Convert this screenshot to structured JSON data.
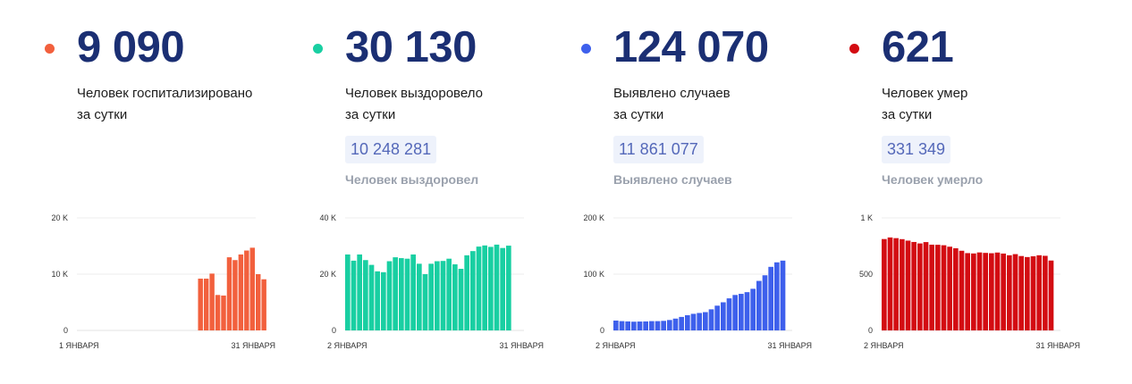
{
  "panels": [
    {
      "id": "hospitalized",
      "color": "#f2603d",
      "number": "9 090",
      "desc_line1": "Человек госпитализировано",
      "desc_line2": "за сутки",
      "total": null,
      "total_label": null
    },
    {
      "id": "recovered",
      "color": "#19cfa2",
      "number": "30 130",
      "desc_line1": "Человек выздоровело",
      "desc_line2": "за сутки",
      "total": "10 248 281",
      "total_label": "Человек выздоровел"
    },
    {
      "id": "cases",
      "color": "#3e60ec",
      "number": "124 070",
      "desc_line1": "Выявлено случаев",
      "desc_line2": "за сутки",
      "total": "11 861 077",
      "total_label": "Выявлено случаев"
    },
    {
      "id": "deaths",
      "color": "#d30c12",
      "number": "621",
      "desc_line1": "Человек умер",
      "desc_line2": "за сутки",
      "total": "331 349",
      "total_label": "Человек умерло"
    }
  ],
  "chart_data": [
    {
      "type": "bar",
      "x_start_label": "1 ЯНВАРЯ",
      "x_end_label": "31 ЯНВАРЯ",
      "y_ticks": [
        "0",
        "10 K",
        "20 K"
      ],
      "ylim": [
        0,
        20000
      ],
      "n_slots": 31,
      "first_value_index": 21,
      "values": [
        9200,
        9200,
        10100,
        6300,
        6200,
        13000,
        12500,
        13500,
        14200,
        14700,
        10000,
        9090
      ],
      "color": "#f2603d"
    },
    {
      "type": "bar",
      "x_start_label": "2 ЯНВАРЯ",
      "x_end_label": "31 ЯНВАРЯ",
      "y_ticks": [
        "0",
        "20 K",
        "40 K"
      ],
      "ylim": [
        0,
        40000
      ],
      "n_slots": 30,
      "first_value_index": 0,
      "values": [
        27000,
        24800,
        27000,
        25000,
        23300,
        21000,
        20700,
        24600,
        26000,
        25700,
        25500,
        27000,
        23700,
        20000,
        23700,
        24600,
        24700,
        25500,
        23500,
        21900,
        26700,
        28200,
        29800,
        30200,
        29700,
        30500,
        29300,
        30130
      ],
      "color": "#19cfa2"
    },
    {
      "type": "bar",
      "x_start_label": "2 ЯНВАРЯ",
      "x_end_label": "31 ЯНВАРЯ",
      "y_ticks": [
        "0",
        "100 K",
        "200 K"
      ],
      "ylim": [
        0,
        200000
      ],
      "n_slots": 30,
      "first_value_index": 0,
      "values": [
        17500,
        16500,
        16000,
        15500,
        15800,
        16000,
        16500,
        16500,
        17000,
        18500,
        21000,
        24000,
        27000,
        29500,
        31000,
        32500,
        37500,
        44000,
        50000,
        57000,
        63000,
        65000,
        68000,
        74000,
        88000,
        98000,
        113000,
        121000,
        124070
      ],
      "color": "#3e60ec"
    },
    {
      "type": "bar",
      "x_start_label": "2 ЯНВАРЯ",
      "x_end_label": "31 ЯНВАРЯ",
      "y_ticks": [
        "0",
        "500",
        "1 K"
      ],
      "ylim": [
        0,
        1000
      ],
      "n_slots": 30,
      "first_value_index": 0,
      "values": [
        812,
        826,
        820,
        811,
        798,
        786,
        773,
        785,
        762,
        761,
        757,
        744,
        730,
        708,
        687,
        684,
        693,
        689,
        686,
        692,
        683,
        668,
        678,
        661,
        652,
        659,
        668,
        663,
        621
      ],
      "color": "#d30c12"
    }
  ]
}
